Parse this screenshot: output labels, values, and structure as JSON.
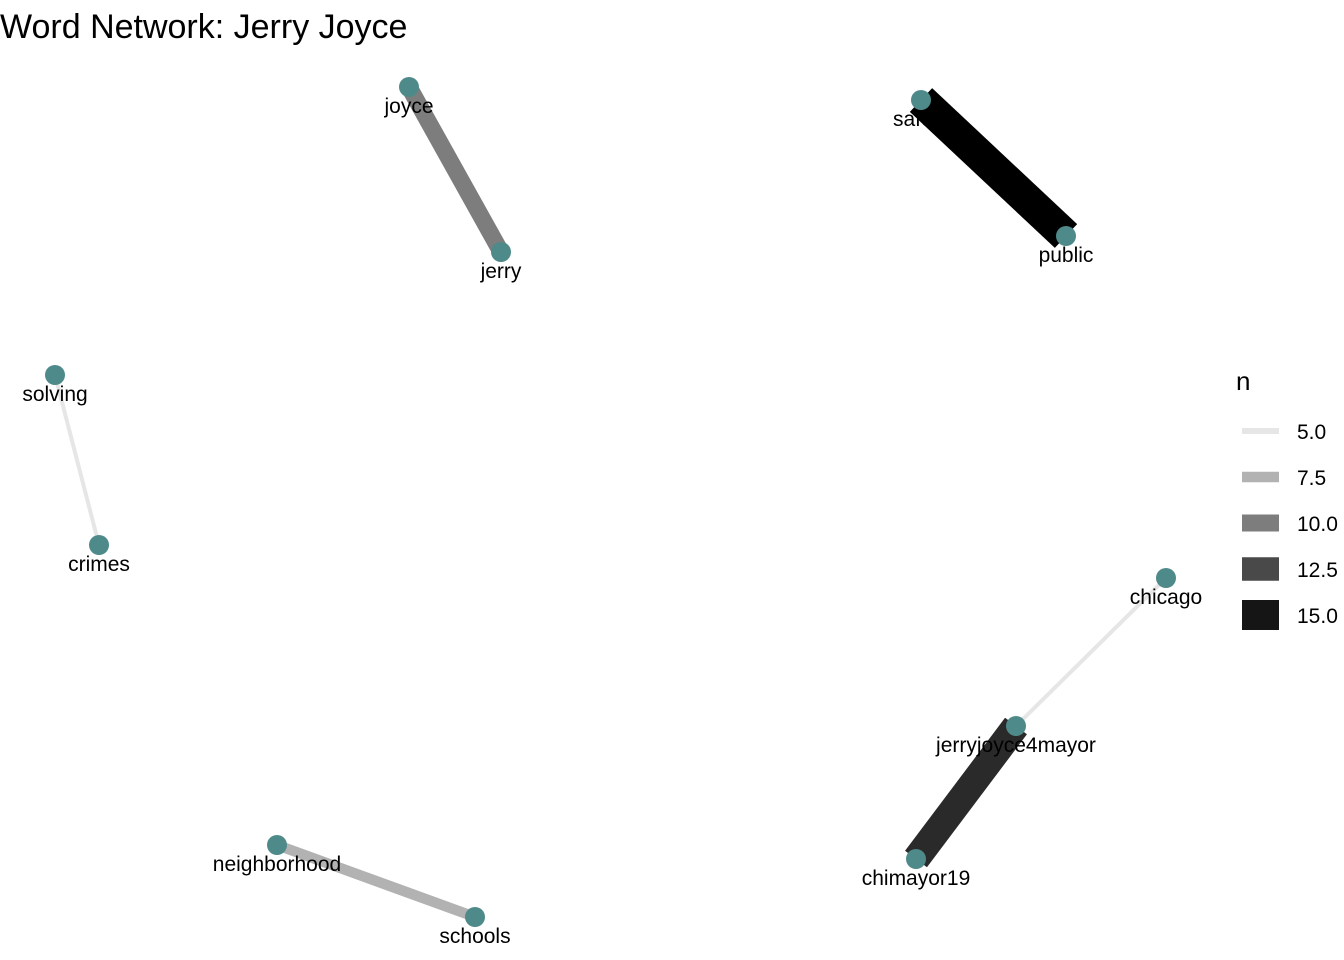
{
  "title": "Word Network: Jerry Joyce",
  "node_color": "#4f8a8b",
  "nodes": [
    {
      "id": "joyce",
      "label": "joyce"
    },
    {
      "id": "jerry",
      "label": "jerry"
    },
    {
      "id": "safety",
      "label": "safety"
    },
    {
      "id": "public",
      "label": "public"
    },
    {
      "id": "solving",
      "label": "solving"
    },
    {
      "id": "crimes",
      "label": "crimes"
    },
    {
      "id": "chicago",
      "label": "chicago"
    },
    {
      "id": "jerryjoyce4mayor",
      "label": "jerryjoyce4mayor"
    },
    {
      "id": "chimayor19",
      "label": "chimayor19"
    },
    {
      "id": "neighborhood",
      "label": "neighborhood"
    },
    {
      "id": "schools",
      "label": "schools"
    }
  ],
  "edges": [
    {
      "from": "joyce",
      "to": "jerry",
      "n": 10
    },
    {
      "from": "safety",
      "to": "public",
      "n": 16
    },
    {
      "from": "solving",
      "to": "crimes",
      "n": 5
    },
    {
      "from": "chicago",
      "to": "jerryjoyce4mayor",
      "n": 5
    },
    {
      "from": "jerryjoyce4mayor",
      "to": "chimayor19",
      "n": 14
    },
    {
      "from": "neighborhood",
      "to": "schools",
      "n": 7.5
    }
  ],
  "legend": {
    "title": "n",
    "items": [
      {
        "label": "5.0",
        "n": 5
      },
      {
        "label": "7.5",
        "n": 7.5
      },
      {
        "label": "10.0",
        "n": 10
      },
      {
        "label": "12.5",
        "n": 12.5
      },
      {
        "label": "15.0",
        "n": 15
      }
    ]
  }
}
